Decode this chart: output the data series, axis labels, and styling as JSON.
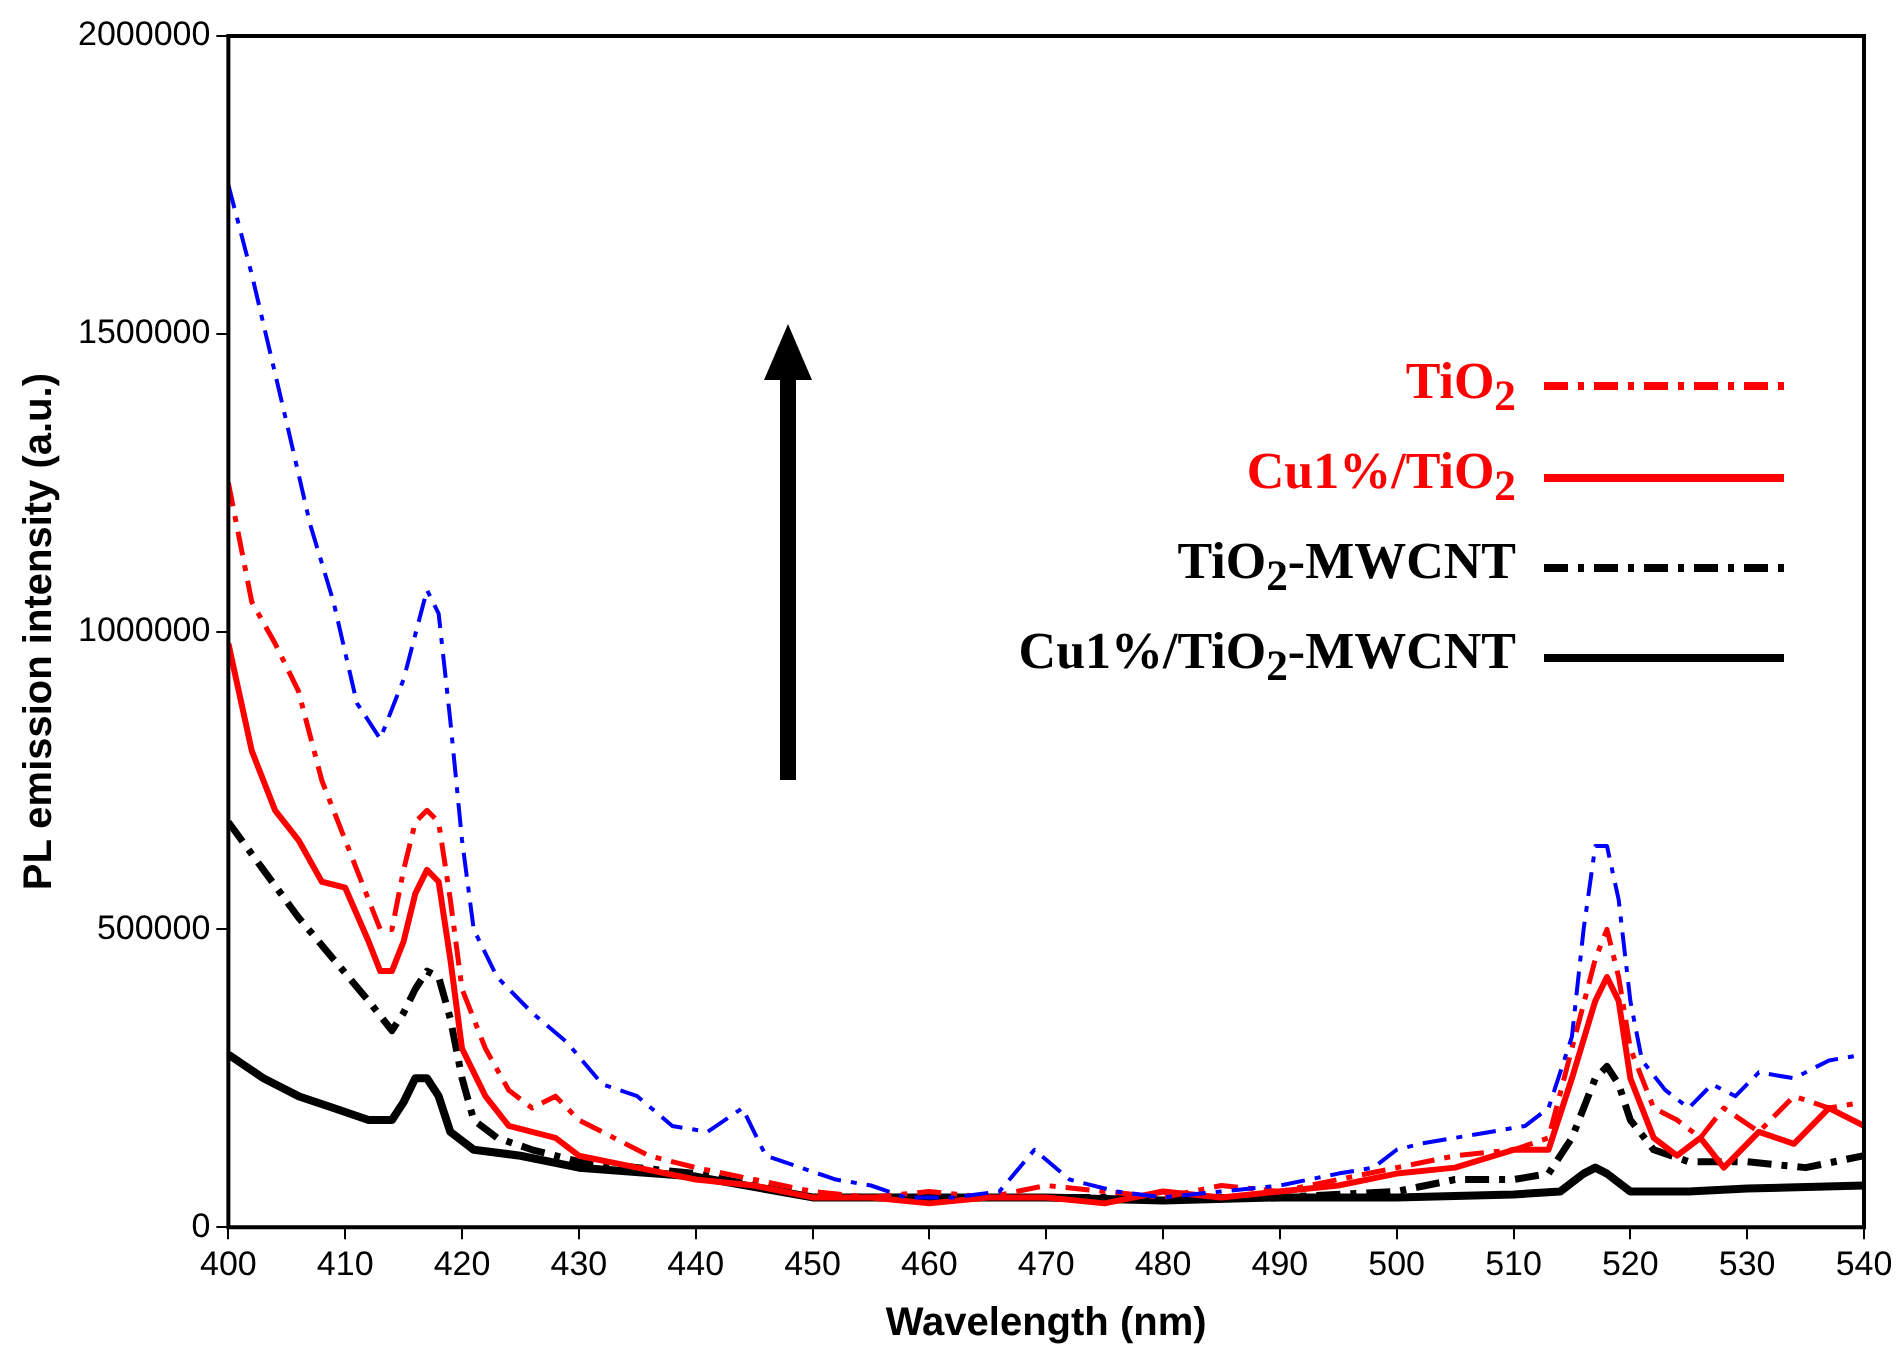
{
  "chart_data": {
    "type": "line",
    "xlabel": "Wavelength (nm)",
    "ylabel": "PL emission intensity (a.u.)",
    "xlim": [
      400,
      540
    ],
    "xticks": [
      400,
      410,
      420,
      430,
      440,
      450,
      460,
      470,
      480,
      490,
      500,
      510,
      520,
      530,
      540
    ],
    "ylim": [
      0,
      2000000
    ],
    "yticks": [
      0,
      500000,
      1000000,
      1500000,
      2000000
    ],
    "grid": false,
    "legend": "right",
    "marker": "none",
    "series": [
      {
        "color": "#0000ff",
        "line_style": "dashed",
        "x": [
          400,
          402,
          405,
          407,
          409,
          411,
          413,
          415,
          417,
          418,
          419,
          420,
          421,
          423,
          426,
          429,
          432,
          435,
          438,
          441,
          444,
          446,
          449,
          452,
          455,
          458,
          462,
          466,
          469,
          472,
          476,
          480,
          485,
          490,
          495,
          498,
          500,
          502,
          505,
          508,
          511,
          513,
          515,
          516,
          517,
          518,
          519,
          520,
          521,
          523,
          525,
          527,
          529,
          531,
          534,
          537,
          540
        ],
        "values": [
          1750000,
          1600000,
          1350000,
          1180000,
          1050000,
          880000,
          820000,
          920000,
          1070000,
          1030000,
          850000,
          650000,
          500000,
          420000,
          360000,
          310000,
          240000,
          220000,
          170000,
          160000,
          200000,
          120000,
          100000,
          80000,
          70000,
          50000,
          50000,
          60000,
          130000,
          80000,
          60000,
          50000,
          60000,
          70000,
          90000,
          100000,
          130000,
          140000,
          150000,
          160000,
          170000,
          200000,
          320000,
          500000,
          640000,
          640000,
          550000,
          380000,
          280000,
          230000,
          200000,
          240000,
          220000,
          260000,
          250000,
          280000,
          290000
        ]
      },
      {
        "name": "TiO$_{2}$",
        "color": "#ff0000",
        "line_style": "dashed",
        "x": [
          400,
          402,
          404,
          406,
          408,
          410,
          412,
          413,
          414,
          415,
          416,
          417,
          418,
          419,
          420,
          422,
          424,
          426,
          428,
          430,
          433,
          436,
          440,
          445,
          450,
          455,
          460,
          465,
          470,
          475,
          480,
          485,
          490,
          495,
          500,
          505,
          510,
          513,
          515,
          517,
          518,
          519,
          520,
          522,
          524,
          526,
          528,
          531,
          534,
          537,
          540
        ],
        "values": [
          1250000,
          1050000,
          980000,
          900000,
          750000,
          650000,
          550000,
          500000,
          500000,
          600000,
          680000,
          700000,
          680000,
          550000,
          400000,
          300000,
          230000,
          200000,
          220000,
          180000,
          150000,
          120000,
          100000,
          80000,
          60000,
          50000,
          60000,
          50000,
          70000,
          60000,
          50000,
          70000,
          60000,
          80000,
          100000,
          120000,
          130000,
          150000,
          300000,
          450000,
          500000,
          420000,
          300000,
          200000,
          180000,
          150000,
          200000,
          160000,
          220000,
          200000,
          210000
        ]
      },
      {
        "name": "Cu1%/TiO$_{2}$",
        "color": "#ff0000",
        "line_style": "solid",
        "x": [
          400,
          402,
          404,
          406,
          408,
          410,
          412,
          413,
          414,
          415,
          416,
          417,
          418,
          419,
          420,
          422,
          424,
          426,
          428,
          430,
          435,
          440,
          445,
          450,
          455,
          460,
          465,
          470,
          475,
          480,
          485,
          490,
          495,
          500,
          505,
          510,
          513,
          515,
          517,
          518,
          519,
          520,
          522,
          524,
          526,
          528,
          531,
          534,
          537,
          540
        ],
        "values": [
          980000,
          800000,
          700000,
          650000,
          580000,
          570000,
          480000,
          430000,
          430000,
          480000,
          560000,
          600000,
          580000,
          450000,
          300000,
          220000,
          170000,
          160000,
          150000,
          120000,
          100000,
          80000,
          70000,
          50000,
          50000,
          40000,
          50000,
          50000,
          40000,
          60000,
          50000,
          60000,
          70000,
          90000,
          100000,
          130000,
          130000,
          250000,
          380000,
          420000,
          380000,
          250000,
          150000,
          120000,
          150000,
          100000,
          160000,
          140000,
          200000,
          170000
        ]
      },
      {
        "name": "TiO$_{2}$-MWCNT",
        "color": "#000000",
        "line_style": "dashed",
        "x": [
          400,
          403,
          406,
          409,
          412,
          414,
          415,
          416,
          417,
          418,
          419,
          420,
          421,
          423,
          426,
          430,
          440,
          450,
          460,
          470,
          480,
          490,
          500,
          505,
          510,
          513,
          515,
          517,
          518,
          519,
          520,
          522,
          525,
          530,
          535,
          540
        ],
        "values": [
          680000,
          600000,
          520000,
          450000,
          380000,
          330000,
          360000,
          400000,
          430000,
          420000,
          350000,
          250000,
          180000,
          150000,
          130000,
          110000,
          90000,
          50000,
          50000,
          50000,
          50000,
          50000,
          60000,
          80000,
          80000,
          90000,
          150000,
          250000,
          270000,
          240000,
          180000,
          130000,
          110000,
          110000,
          100000,
          120000
        ]
      },
      {
        "name": "Cu1%/TiO$_{2}$-MWCNT",
        "color": "#000000",
        "line_style": "solid",
        "x": [
          400,
          403,
          406,
          409,
          412,
          414,
          415,
          416,
          417,
          418,
          419,
          421,
          425,
          430,
          440,
          450,
          460,
          470,
          480,
          490,
          500,
          510,
          514,
          516,
          517,
          518,
          520,
          525,
          530,
          540
        ],
        "values": [
          290000,
          250000,
          220000,
          200000,
          180000,
          180000,
          210000,
          250000,
          250000,
          220000,
          160000,
          130000,
          120000,
          100000,
          85000,
          50000,
          50000,
          50000,
          45000,
          50000,
          50000,
          55000,
          60000,
          90000,
          100000,
          90000,
          60000,
          60000,
          65000,
          70000
        ]
      }
    ]
  }
}
